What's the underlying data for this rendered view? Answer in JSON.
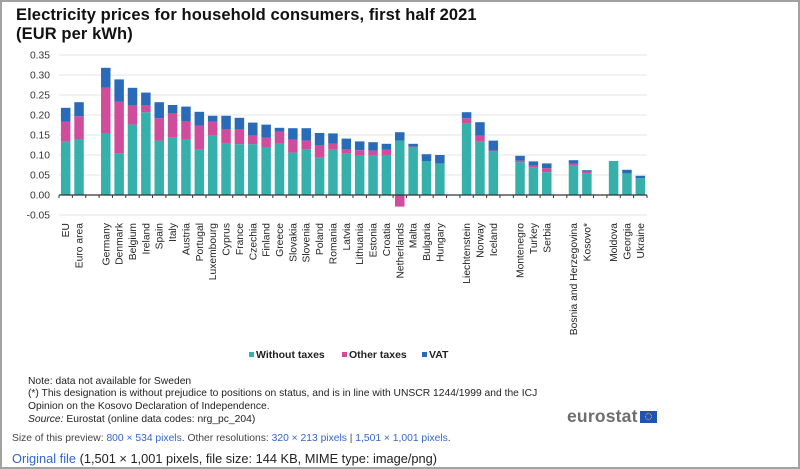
{
  "page": {
    "preview_label": "Size of this preview:",
    "preview_link": "800 × 534 pixels",
    "other_label": ". Other resolutions:",
    "res_links": [
      "320 × 213 pixels",
      "1,501 × 1,001 pixels"
    ],
    "res_sep": " | ",
    "res_end": ".",
    "original_link": "Original file",
    "original_info": " (1,501 × 1,001 pixels, file size: 144 KB, MIME type: image/png)"
  },
  "notes": {
    "line1": "Note: data not available for Sweden",
    "line2": "(*) This designation is without prejudice to positions on status, and is in line with UNSCR 1244/1999 and the ICJ",
    "line3": "Opinion on the Kosovo Declaration of Independence.",
    "source_label": "Source:",
    "source_text": " Eurostat (online data codes: nrg_pc_204)"
  },
  "logo": {
    "text": "eurostat",
    "flag_icon": "eu-flag-icon"
  },
  "colors": {
    "without_taxes": "#36b0ab",
    "other_taxes": "#d04d9c",
    "vat": "#2a6bb9",
    "grid": "#e6e6e6",
    "axis": "#333333"
  },
  "chart_data": {
    "type": "bar",
    "stacked": true,
    "title": "Electricity prices for household consumers, first half 2021",
    "subtitle": "(EUR per kWh)",
    "xlabel": "",
    "ylabel": "",
    "ylim": [
      -0.05,
      0.35
    ],
    "yticks": [
      "0.35",
      "0.30",
      "0.25",
      "0.20",
      "0.15",
      "0.10",
      "0.05",
      "0.00",
      "-0.05"
    ],
    "grid": true,
    "legend_position": "bottom",
    "categories": [
      "EU",
      "Euro area",
      "",
      "Germany",
      "Denmark",
      "Belgium",
      "Ireland",
      "Spain",
      "Italy",
      "Austria",
      "Portugal",
      "Luxembourg",
      "Cyprus",
      "France",
      "Czechia",
      "Finland",
      "Greece",
      "Slovakia",
      "Slovenia",
      "Poland",
      "Romania",
      "Latvia",
      "Lithuania",
      "Estonia",
      "Croatia",
      "Netherlands",
      "Malta",
      "Bulgaria",
      "Hungary",
      "",
      "Liechtenstein",
      "Norway",
      "Iceland",
      "",
      "Montenegro",
      "Turkey",
      "Serbia",
      "",
      "Bosnia and Herzegovina",
      "Kosovo*",
      "",
      "Moldova",
      "Georgia",
      "Ukraine"
    ],
    "series": [
      {
        "name": "Without taxes",
        "values": [
          0.133,
          0.14,
          null,
          0.155,
          0.103,
          0.176,
          0.207,
          0.136,
          0.143,
          0.14,
          0.113,
          0.148,
          0.128,
          0.127,
          0.127,
          0.12,
          0.13,
          0.106,
          0.114,
          0.093,
          0.113,
          0.103,
          0.1,
          0.098,
          0.1,
          0.136,
          0.119,
          0.085,
          0.079,
          null,
          0.179,
          0.133,
          0.108,
          null,
          0.082,
          0.068,
          0.057,
          null,
          0.073,
          0.054,
          null,
          0.085,
          0.054,
          0.042
        ]
      },
      {
        "name": "Other taxes",
        "values": [
          0.05,
          0.057,
          null,
          0.113,
          0.13,
          0.048,
          0.017,
          0.056,
          0.062,
          0.045,
          0.06,
          0.035,
          0.037,
          0.038,
          0.022,
          0.023,
          0.028,
          0.032,
          0.022,
          0.032,
          0.015,
          0.012,
          0.012,
          0.013,
          0.013,
          -0.029,
          0.002,
          0.0,
          0.0,
          null,
          0.013,
          0.015,
          0.003,
          null,
          0.004,
          0.005,
          0.01,
          null,
          0.005,
          0.004,
          null,
          0.0,
          0.0,
          0.0
        ]
      },
      {
        "name": "VAT",
        "values": [
          0.035,
          0.035,
          null,
          0.05,
          0.056,
          0.044,
          0.032,
          0.04,
          0.02,
          0.036,
          0.035,
          0.015,
          0.033,
          0.028,
          0.032,
          0.033,
          0.01,
          0.029,
          0.031,
          0.03,
          0.026,
          0.026,
          0.022,
          0.021,
          0.015,
          0.021,
          0.007,
          0.017,
          0.021,
          null,
          0.015,
          0.034,
          0.025,
          null,
          0.012,
          0.011,
          0.012,
          null,
          0.009,
          0.004,
          null,
          0.0,
          0.009,
          0.006
        ]
      }
    ]
  }
}
